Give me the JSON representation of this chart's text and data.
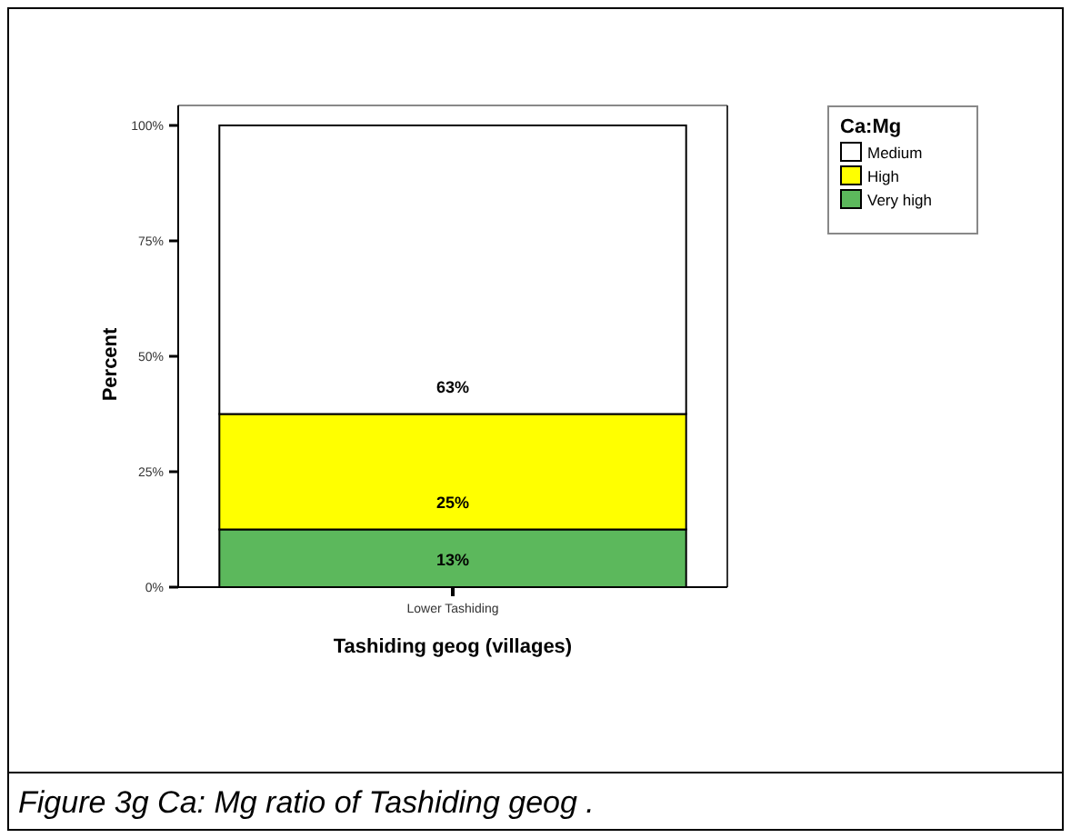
{
  "chart_data": {
    "type": "bar",
    "stacked": true,
    "xlabel": "Tashiding geog (villages)",
    "ylabel": "Percent",
    "legend_title": "Ca:Mg",
    "legend": "top right",
    "categories": [
      "Lower Tashiding"
    ],
    "series": [
      {
        "name": "Very high",
        "color": "#5cb85c",
        "values": [
          12.5
        ],
        "value_labels": [
          "13%"
        ]
      },
      {
        "name": "High",
        "color": "#ffff00",
        "values": [
          25
        ],
        "value_labels": [
          "25%"
        ]
      },
      {
        "name": "Medium",
        "color": "#ffffff",
        "values": [
          62.5
        ],
        "value_labels": [
          "63%"
        ]
      }
    ],
    "ylim": [
      0,
      100
    ],
    "yticks": [
      {
        "value": 0,
        "label": "0%"
      },
      {
        "value": 25,
        "label": "25%"
      },
      {
        "value": 50,
        "label": "50%"
      },
      {
        "value": 75,
        "label": "75%"
      },
      {
        "value": 100,
        "label": "100%"
      }
    ],
    "annotations": [
      "Figure 3g  Ca: Mg ratio of Tashiding geog ."
    ]
  }
}
